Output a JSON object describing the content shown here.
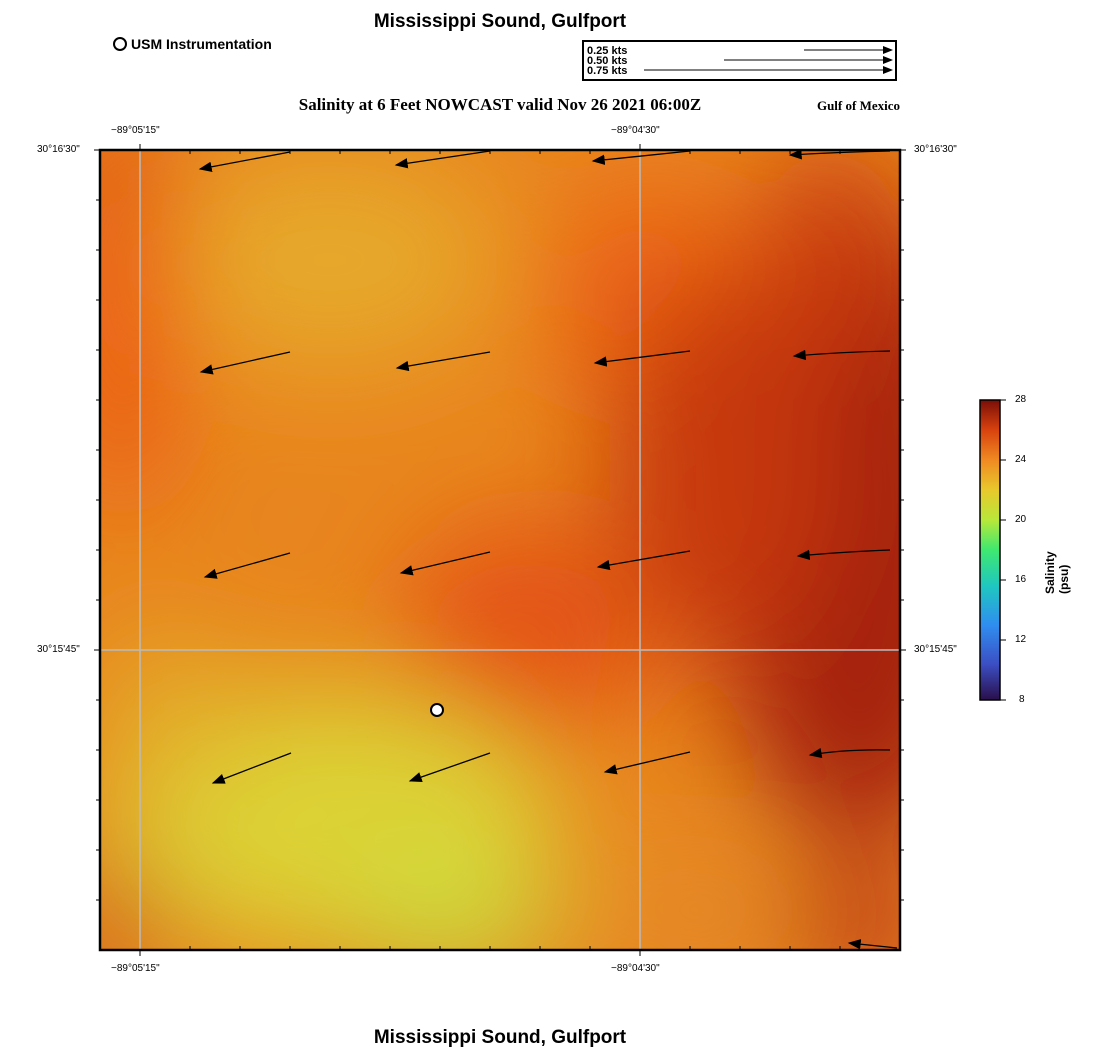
{
  "header": {
    "title": "Mississippi Sound, Gulfport",
    "subtitle": "Salinity at 6 Feet NOWCAST valid Nov 26 2021 06:00Z",
    "region": "Gulf of Mexico"
  },
  "legend": {
    "station_label": "USM Instrumentation"
  },
  "vector_scale": {
    "labels": [
      "0.25 kts",
      "0.50 kts",
      "0.75 kts"
    ]
  },
  "axes": {
    "x_ticks": [
      "−89°05'15\"",
      "−89°04'30\""
    ],
    "y_ticks": [
      "30°16'30\"",
      "30°15'45\""
    ]
  },
  "colorbar": {
    "title": "Salinity (psu)",
    "ticks": [
      "28",
      "24",
      "20",
      "16",
      "12",
      "8"
    ],
    "range": [
      8,
      28
    ]
  },
  "footer": {
    "title": "Mississippi Sound, Gulfport"
  }
}
